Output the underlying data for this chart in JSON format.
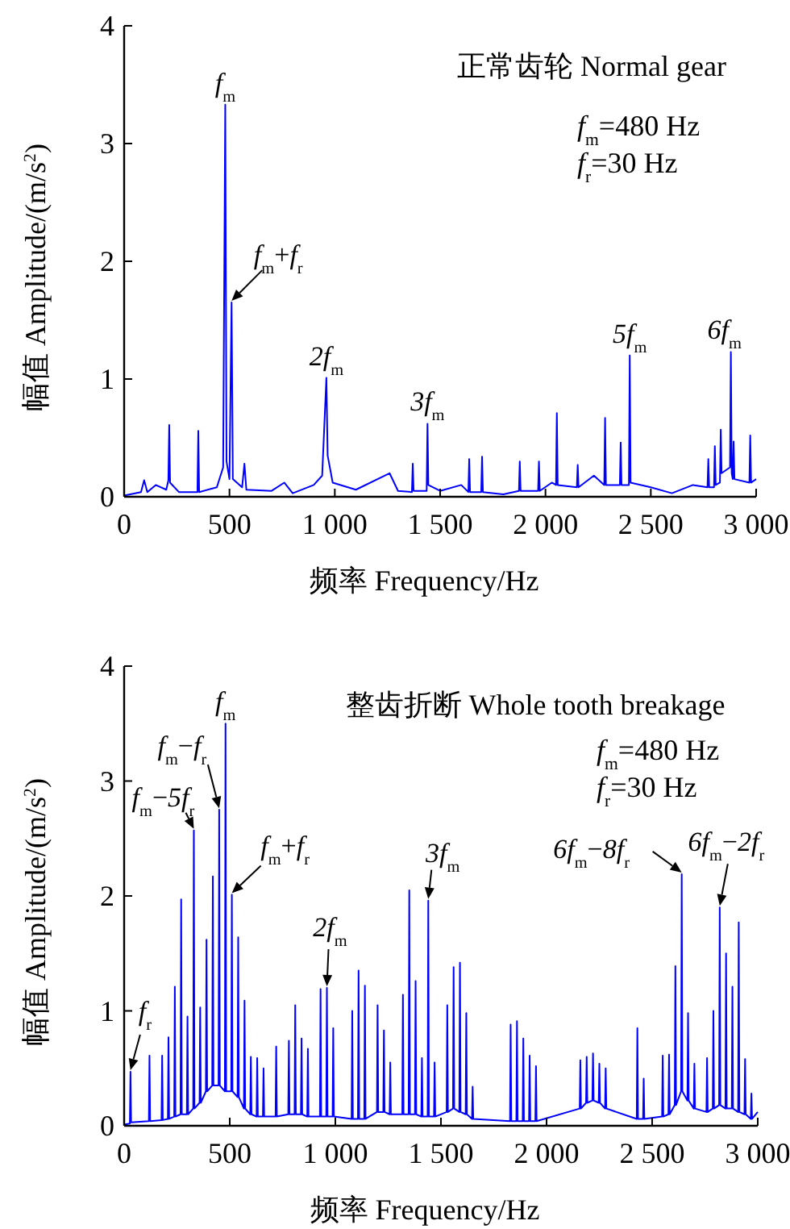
{
  "chart_data": [
    {
      "type": "line",
      "title": "正常齿轮 Normal gear",
      "xlabel": "频率 Frequency/Hz",
      "ylabel": "幅值 Amplitude/(m/s$^{2}$)",
      "xlim": [
        0,
        3000
      ],
      "ylim": [
        0,
        4
      ],
      "xticks": [
        {
          "value": 0,
          "label": "0"
        },
        500,
        {
          "value": 1000,
          "label": "1 000"
        },
        {
          "value": 1500,
          "label": "1 500"
        },
        {
          "value": 2000,
          "label": "2 000"
        },
        {
          "value": 2500,
          "label": "2 500"
        },
        {
          "value": 3000,
          "label": "3 000"
        }
      ],
      "yticks": [
        {
          "value": 0,
          "label": "0"
        },
        1,
        2,
        3,
        4
      ],
      "annotations": [
        {
          "text": "*f*$_{m}$",
          "x": 480,
          "y": 3.33
        },
        {
          "text": "*f*$_{m}$+*f*$_{r}$",
          "x": 510,
          "y": 1.65
        },
        {
          "text": "*2f*$_{m}$",
          "x": 960,
          "y": 1.01
        },
        {
          "text": "*3f*$_{m}$",
          "x": 1440,
          "y": 0.62
        },
        {
          "text": "*5f*$_{m}$",
          "x": 2400,
          "y": 1.2
        },
        {
          "text": "*6f*$_{m}$",
          "x": 2880,
          "y": 1.23
        },
        "*f*$_{m}$=480 Hz",
        "*f*$_{r}$=30 Hz"
      ],
      "series": [
        {
          "color": "#0000ff",
          "x": [
            0,
            80,
            95,
            110,
            150,
            200,
            210,
            214,
            218,
            260,
            348,
            352,
            356,
            440,
            470,
            480,
            486,
            500,
            510,
            516,
            560,
            571,
            580,
            700,
            760,
            800,
            900,
            940,
            960,
            966,
            990,
            1100,
            1260,
            1300,
            1366,
            1370,
            1374,
            1436,
            1440,
            1444,
            1500,
            1600,
            1634,
            1638,
            1642,
            1695,
            1699,
            1703,
            1800,
            1874,
            1878,
            1882,
            1965,
            1969,
            1973,
            2030,
            2050,
            2054,
            2058,
            2149,
            2153,
            2157,
            2230,
            2279,
            2283,
            2287,
            2353,
            2357,
            2361,
            2396,
            2400,
            2404,
            2500,
            2600,
            2700,
            2769,
            2773,
            2777,
            2800,
            2804,
            2808,
            2828,
            2832,
            2836,
            2876,
            2880,
            2884,
            2889,
            2893,
            2897,
            2968,
            2972,
            2976,
            3000
          ],
          "values": [
            0.01,
            0.04,
            0.14,
            0.04,
            0.1,
            0.06,
            0.14,
            0.61,
            0.12,
            0.04,
            0.04,
            0.56,
            0.04,
            0.08,
            0.25,
            3.33,
            0.3,
            0.15,
            1.65,
            0.15,
            0.08,
            0.28,
            0.06,
            0.05,
            0.12,
            0.03,
            0.1,
            0.18,
            1.01,
            0.35,
            0.12,
            0.06,
            0.2,
            0.05,
            0.04,
            0.28,
            0.05,
            0.05,
            0.62,
            0.1,
            0.05,
            0.1,
            0.04,
            0.32,
            0.04,
            0.04,
            0.34,
            0.04,
            0.02,
            0.05,
            0.3,
            0.05,
            0.05,
            0.3,
            0.05,
            0.12,
            0.1,
            0.71,
            0.1,
            0.08,
            0.27,
            0.08,
            0.18,
            0.1,
            0.67,
            0.1,
            0.1,
            0.46,
            0.1,
            0.1,
            1.2,
            0.12,
            0.08,
            0.03,
            0.1,
            0.08,
            0.32,
            0.08,
            0.08,
            0.43,
            0.1,
            0.12,
            0.57,
            0.2,
            0.25,
            1.23,
            0.2,
            0.15,
            0.47,
            0.15,
            0.12,
            0.52,
            0.12,
            0.15
          ]
        }
      ]
    },
    {
      "type": "line",
      "title": "整齿折断 Whole tooth breakage",
      "xlabel": "频率 Frequency/Hz",
      "ylabel": "幅值 Amplitude/(m/s$^{2}$)",
      "xlim": [
        0,
        3000
      ],
      "ylim": [
        0,
        4
      ],
      "xticks": [
        {
          "value": 0,
          "label": "0"
        },
        500,
        {
          "value": 1000,
          "label": "1 000"
        },
        {
          "value": 1500,
          "label": "1 500"
        },
        {
          "value": 2000,
          "label": "2 000"
        },
        {
          "value": 2500,
          "label": "2 500"
        },
        {
          "value": 3000,
          "label": "3 000"
        }
      ],
      "yticks": [
        {
          "value": 0,
          "label": "0"
        },
        1,
        2,
        3,
        4
      ],
      "annotations": [
        {
          "text": "*f*$_{r}$",
          "x": 30,
          "y": 0.47
        },
        {
          "text": "*f*$_{m}$−*5f*$_{r}$",
          "x": 330,
          "y": 2.57
        },
        {
          "text": "*f*$_{m}$−*f*$_{r}$",
          "x": 450,
          "y": 2.75
        },
        {
          "text": "*f*$_{m}$",
          "x": 480,
          "y": 3.5
        },
        {
          "text": "*f*$_{m}$+*f*$_{r}$",
          "x": 510,
          "y": 2.01
        },
        {
          "text": "*2f*$_{m}$",
          "x": 960,
          "y": 1.2
        },
        {
          "text": "*3f*$_{m}$",
          "x": 1440,
          "y": 1.96
        },
        {
          "text": "*6f*$_{m}$−*8f*$_{r}$",
          "x": 2640,
          "y": 2.19
        },
        {
          "text": "*6f*$_{m}$−*2f*$_{r}$",
          "x": 2820,
          "y": 1.9
        },
        "*f*$_{m}$=480 Hz",
        "*f*$_{r}$=30 Hz"
      ],
      "series": [
        {
          "color": "#0000ff",
          "x": [
            0,
            27,
            30,
            33,
            117,
            120,
            123,
            177,
            180,
            183,
            207,
            210,
            213,
            237,
            240,
            243,
            267,
            270,
            273,
            297,
            300,
            303,
            327,
            330,
            333,
            357,
            360,
            363,
            387,
            390,
            393,
            417,
            420,
            423,
            447,
            450,
            453,
            477,
            480,
            483,
            507,
            510,
            513,
            537,
            540,
            543,
            567,
            570,
            573,
            597,
            600,
            603,
            627,
            630,
            633,
            657,
            660,
            663,
            717,
            720,
            723,
            777,
            780,
            783,
            807,
            810,
            813,
            837,
            840,
            843,
            867,
            870,
            873,
            927,
            930,
            933,
            957,
            960,
            963,
            987,
            990,
            993,
            1077,
            1080,
            1083,
            1107,
            1110,
            1113,
            1137,
            1140,
            1143,
            1197,
            1200,
            1203,
            1227,
            1230,
            1233,
            1257,
            1260,
            1263,
            1317,
            1320,
            1323,
            1347,
            1350,
            1353,
            1377,
            1380,
            1383,
            1407,
            1410,
            1413,
            1437,
            1440,
            1443,
            1467,
            1470,
            1473,
            1527,
            1530,
            1533,
            1557,
            1560,
            1563,
            1587,
            1590,
            1593,
            1617,
            1620,
            1623,
            1647,
            1650,
            1653,
            1827,
            1830,
            1833,
            1857,
            1860,
            1863,
            1887,
            1890,
            1893,
            1917,
            1920,
            1923,
            1947,
            1950,
            1953,
            2157,
            2160,
            2163,
            2187,
            2190,
            2193,
            2217,
            2220,
            2223,
            2247,
            2250,
            2253,
            2277,
            2280,
            2283,
            2427,
            2430,
            2433,
            2457,
            2460,
            2463,
            2547,
            2550,
            2553,
            2577,
            2580,
            2583,
            2607,
            2610,
            2613,
            2637,
            2640,
            2643,
            2667,
            2670,
            2673,
            2697,
            2700,
            2703,
            2757,
            2760,
            2763,
            2787,
            2790,
            2793,
            2817,
            2820,
            2823,
            2847,
            2850,
            2853,
            2877,
            2880,
            2883,
            2907,
            2910,
            2913,
            2937,
            2940,
            2943,
            2967,
            2970,
            2973,
            3000
          ],
          "values": [
            0.01,
            0.02,
            0.47,
            0.03,
            0.04,
            0.61,
            0.04,
            0.05,
            0.61,
            0.05,
            0.06,
            0.77,
            0.06,
            0.08,
            1.21,
            0.08,
            0.1,
            1.97,
            0.1,
            0.1,
            0.95,
            0.1,
            0.15,
            2.57,
            0.15,
            0.2,
            1.03,
            0.2,
            0.3,
            1.62,
            0.3,
            0.35,
            2.17,
            0.35,
            0.35,
            2.75,
            0.35,
            0.3,
            3.5,
            0.3,
            0.3,
            2.01,
            0.3,
            0.25,
            1.64,
            0.25,
            0.15,
            1.09,
            0.15,
            0.1,
            0.6,
            0.1,
            0.08,
            0.59,
            0.08,
            0.08,
            0.5,
            0.08,
            0.08,
            0.69,
            0.08,
            0.1,
            0.74,
            0.1,
            0.1,
            1.05,
            0.1,
            0.1,
            0.76,
            0.1,
            0.08,
            0.67,
            0.08,
            0.08,
            1.19,
            0.08,
            0.08,
            1.2,
            0.08,
            0.08,
            0.85,
            0.08,
            0.06,
            1.0,
            0.06,
            0.06,
            1.35,
            0.06,
            0.06,
            1.22,
            0.06,
            0.12,
            1.05,
            0.12,
            0.12,
            0.83,
            0.12,
            0.1,
            0.55,
            0.1,
            0.1,
            1.14,
            0.1,
            0.1,
            2.05,
            0.1,
            0.1,
            1.26,
            0.1,
            0.08,
            0.59,
            0.08,
            0.08,
            1.96,
            0.08,
            0.08,
            0.55,
            0.08,
            0.12,
            1.05,
            0.12,
            0.15,
            1.38,
            0.15,
            0.12,
            1.42,
            0.12,
            0.1,
            0.98,
            0.1,
            0.06,
            0.34,
            0.06,
            0.04,
            0.88,
            0.04,
            0.04,
            0.91,
            0.04,
            0.04,
            0.76,
            0.04,
            0.04,
            0.61,
            0.04,
            0.04,
            0.52,
            0.04,
            0.15,
            0.57,
            0.15,
            0.2,
            0.6,
            0.2,
            0.22,
            0.63,
            0.22,
            0.2,
            0.54,
            0.2,
            0.15,
            0.5,
            0.15,
            0.06,
            0.85,
            0.06,
            0.06,
            0.41,
            0.06,
            0.08,
            0.61,
            0.08,
            0.1,
            0.62,
            0.1,
            0.18,
            1.39,
            0.18,
            0.3,
            2.19,
            0.3,
            0.22,
            0.98,
            0.22,
            0.15,
            0.54,
            0.15,
            0.12,
            0.59,
            0.12,
            0.15,
            1.0,
            0.15,
            0.18,
            1.9,
            0.18,
            0.15,
            1.5,
            0.15,
            0.15,
            1.21,
            0.15,
            0.12,
            1.77,
            0.12,
            0.1,
            0.58,
            0.1,
            0.06,
            0.28,
            0.06,
            0.12
          ]
        }
      ]
    }
  ]
}
